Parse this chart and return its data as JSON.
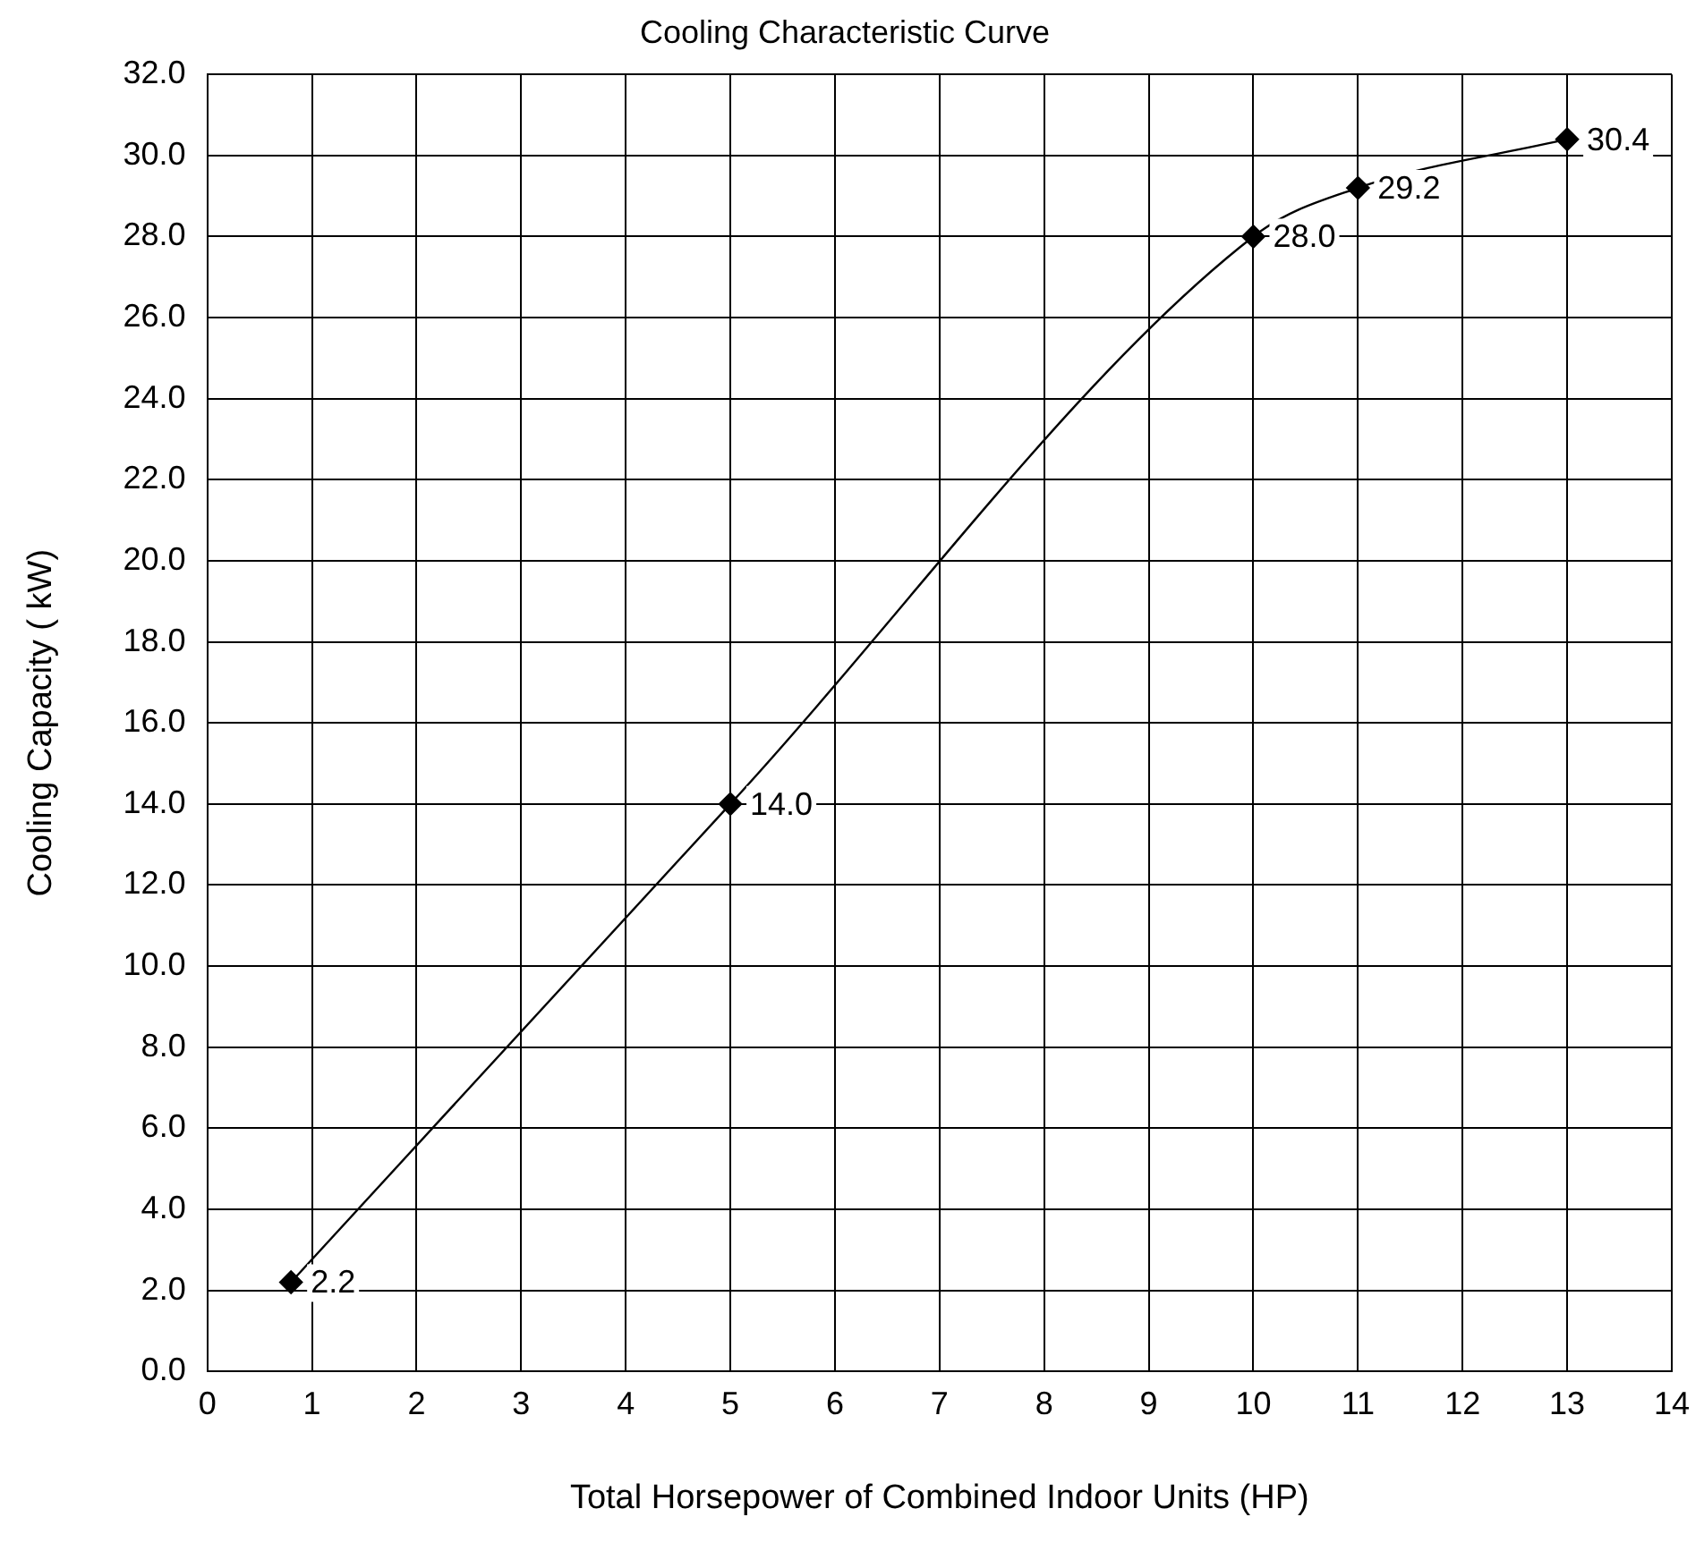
{
  "chart_data": {
    "type": "line",
    "title": "Cooling Characteristic Curve",
    "xlabel": "Total Horsepower of Combined Indoor Units (HP)",
    "ylabel": "Cooling Capacity ( kW)",
    "x": [
      0.8,
      5,
      10,
      11,
      13
    ],
    "series": [
      {
        "color": "#000000",
        "values": [
          2.2,
          14.0,
          28.0,
          29.2,
          30.4
        ],
        "value_labels": [
          "2.2",
          "14.0",
          "28.0",
          "29.2",
          "30.4"
        ]
      }
    ],
    "xlim": [
      0,
      14
    ],
    "xticks": [
      0,
      1,
      2,
      3,
      4,
      5,
      6,
      7,
      8,
      9,
      10,
      11,
      12,
      13,
      14
    ],
    "ylim": [
      0,
      32
    ],
    "yticks": [
      {
        "value": 0,
        "label": "0.0"
      },
      {
        "value": 2,
        "label": "2.0"
      },
      {
        "value": 4,
        "label": "4.0"
      },
      {
        "value": 6,
        "label": "6.0"
      },
      {
        "value": 8,
        "label": "8.0"
      },
      {
        "value": 10,
        "label": "10.0"
      },
      {
        "value": 12,
        "label": "12.0"
      },
      {
        "value": 14,
        "label": "14.0"
      },
      {
        "value": 16,
        "label": "16.0"
      },
      {
        "value": 18,
        "label": "18.0"
      },
      {
        "value": 20,
        "label": "20.0"
      },
      {
        "value": 22,
        "label": "22.0"
      },
      {
        "value": 24,
        "label": "24.0"
      },
      {
        "value": 26,
        "label": "26.0"
      },
      {
        "value": 28,
        "label": "28.0"
      },
      {
        "value": 30,
        "label": "30.0"
      },
      {
        "value": 32,
        "label": "32.0"
      }
    ],
    "grid": true,
    "legend": false,
    "marker": "diamond",
    "line_style": "solid"
  }
}
